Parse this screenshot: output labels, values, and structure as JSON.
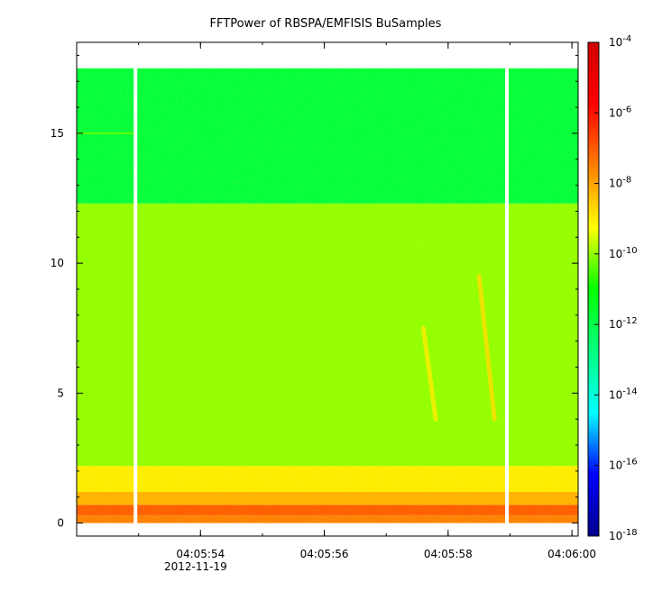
{
  "chart_data": {
    "type": "heatmap",
    "title": "FFTPower of RBSPA/EMFISIS  BuSamples",
    "xlabel": "",
    "ylabel": "",
    "x_ticks": [
      "04:05:54",
      "04:05:56",
      "04:05:58",
      "04:06:00"
    ],
    "x_date_label": "2012-11-19",
    "y_ticks": [
      "0",
      "5",
      "10",
      "15"
    ],
    "ylim": [
      -0.5,
      18.5
    ],
    "x_range": [
      "04:05:52.0",
      "04:06:00.1"
    ],
    "data_gaps": [
      "04:05:52.95",
      "04:05:58.95"
    ],
    "frequency_bands": [
      {
        "y_min": 0.0,
        "y_max": 0.3,
        "power_log10": -7.5
      },
      {
        "y_min": 0.3,
        "y_max": 0.7,
        "power_log10": -7.0
      },
      {
        "y_min": 0.7,
        "y_max": 1.2,
        "power_log10": -8.2
      },
      {
        "y_min": 1.2,
        "y_max": 2.2,
        "power_log10": -9.0
      },
      {
        "y_min": 2.2,
        "y_max": 12.3,
        "power_log10": -10.0
      },
      {
        "y_min": 12.3,
        "y_max": 17.5,
        "power_log10": -11.8
      }
    ],
    "features": [
      {
        "t_start": "04:05:57.6",
        "t_end": "04:05:57.8",
        "f_start": 7.5,
        "f_end": 4.0,
        "power_log10": -9.0
      },
      {
        "t_start": "04:05:58.5",
        "t_end": "04:05:58.75",
        "f_start": 9.5,
        "f_end": 4.0,
        "power_log10": -8.8
      },
      {
        "t_start": "04:05:52.0",
        "t_end": "04:05:52.95",
        "f_start": 15.0,
        "f_end": 15.0,
        "power_log10": -10.2
      }
    ],
    "colorbar": {
      "scale": "log",
      "range": [
        -18,
        -4
      ],
      "tick_bases": [
        "10",
        "10",
        "10",
        "10",
        "10",
        "10",
        "10",
        "10"
      ],
      "tick_exponents": [
        "-4",
        "-6",
        "-8",
        "-10",
        "-12",
        "-14",
        "-16",
        "-18"
      ],
      "tick_values": [
        -4,
        -6,
        -8,
        -10,
        -12,
        -14,
        -16,
        -18
      ],
      "colors": [
        "#00008c",
        "#0000ff",
        "#00ffff",
        "#00ff7f",
        "#00ff00",
        "#ffff00",
        "#ff7f00",
        "#ff0000",
        "#d00000"
      ]
    }
  }
}
